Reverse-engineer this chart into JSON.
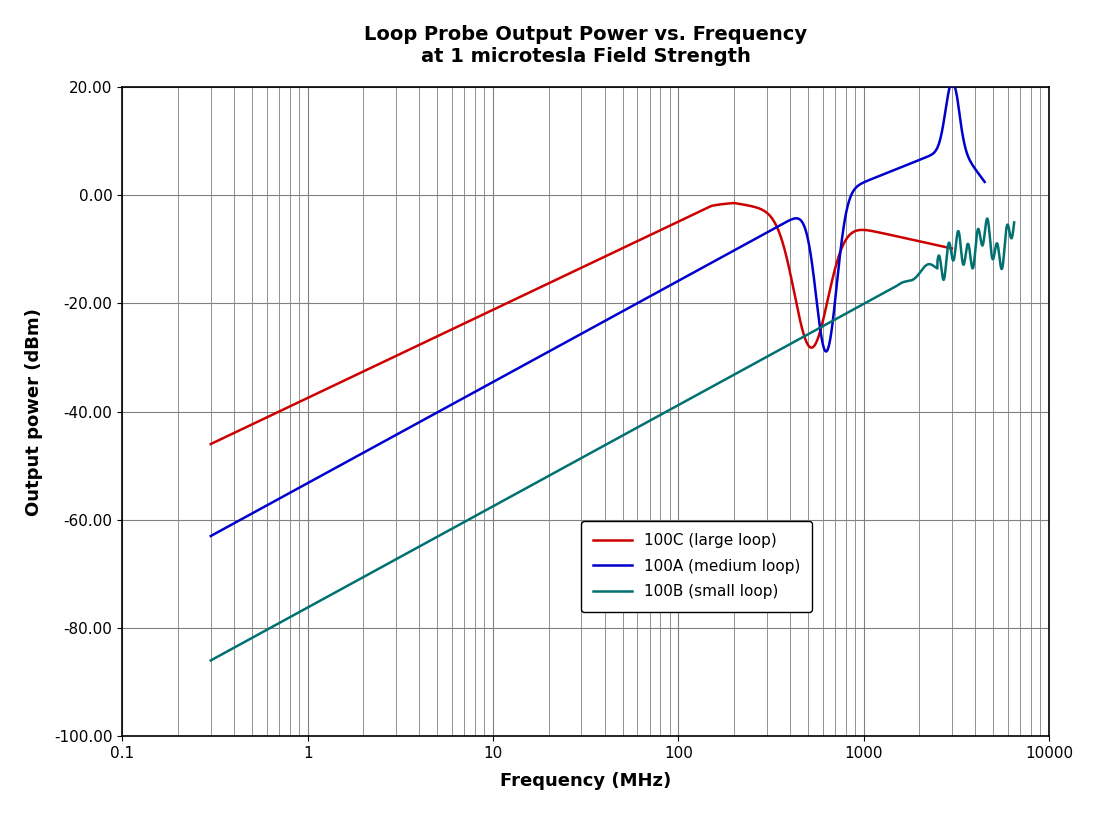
{
  "title_line1": "Loop Probe Output Power vs. Frequency",
  "title_line2": "at 1 microtesla Field Strength",
  "xlabel": "Frequency (MHz)",
  "ylabel": "Output power (dBm)",
  "xlim": [
    0.1,
    10000
  ],
  "ylim": [
    -100,
    20
  ],
  "yticks": [
    -100,
    -80,
    -60,
    -40,
    -20,
    0,
    20
  ],
  "ytick_labels": [
    "-100.00",
    "-80.00",
    "-60.00",
    "-40.00",
    "-20.00",
    "0.00",
    "20.00"
  ],
  "background_color": "#ffffff",
  "grid_color": "#808080",
  "legend_labels": [
    "100C (large loop)",
    "100A (medium loop)",
    "100B (small loop)"
  ],
  "colors": {
    "100C": "#cc0000",
    "100A": "#0000cc",
    "100B": "#007070"
  },
  "line_width": 1.8,
  "title_fontsize": 14,
  "label_fontsize": 13,
  "tick_fontsize": 11
}
